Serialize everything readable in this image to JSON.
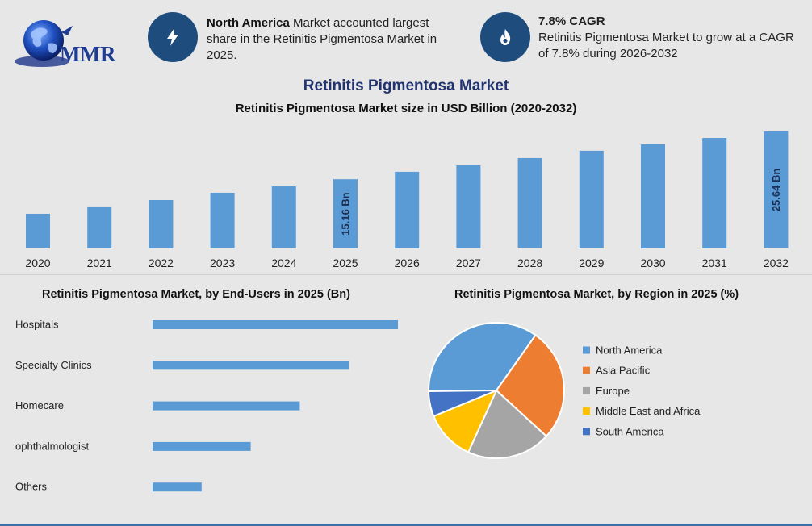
{
  "header": {
    "logo_text": "MMR",
    "info": [
      {
        "icon": "lightning-icon",
        "bold": "North America",
        "text": " Market accounted largest share in the Retinitis Pigmentosa Market in 2025."
      },
      {
        "icon": "flame-icon",
        "bold": "7.8% CAGR",
        "text": "Retinitis Pigmentosa Market to grow at a CAGR of 7.8% during 2026-2032"
      }
    ]
  },
  "colors": {
    "bar": "#5b9bd5",
    "icon_circle": "#1e4c7d",
    "title": "#22346f"
  },
  "chart_data": [
    {
      "type": "bar",
      "title": "Retinitis Pigmentosa Market",
      "subtitle": "Retinitis Pigmentosa Market size in USD Billion (2020-2032)",
      "categories": [
        "2020",
        "2021",
        "2022",
        "2023",
        "2024",
        "2025",
        "2026",
        "2027",
        "2028",
        "2029",
        "2030",
        "2031",
        "2032"
      ],
      "values": [
        7.6,
        9.2,
        10.6,
        12.2,
        13.6,
        15.16,
        16.8,
        18.2,
        19.8,
        21.4,
        22.8,
        24.2,
        25.64
      ],
      "data_labels": [
        {
          "index": 5,
          "text": "15.16 Bn"
        },
        {
          "index": 12,
          "text": "25.64 Bn"
        }
      ],
      "ylim": [
        0,
        26.5
      ]
    },
    {
      "type": "bar",
      "orientation": "horizontal",
      "title": "Retinitis Pigmentosa Market, by End-Users in 2025 (Bn)",
      "categories": [
        "Hospitals",
        "Specialty Clinics",
        "Homecare",
        "ophthalmologist",
        "Others"
      ],
      "values": [
        5.0,
        4.0,
        3.0,
        2.0,
        1.0
      ],
      "xlim": [
        0,
        5.0
      ]
    },
    {
      "type": "pie",
      "title": "Retinitis Pigmentosa Market, by Region in 2025 (%)",
      "legend_position": "right",
      "slices": [
        {
          "name": "North America",
          "value": 35,
          "color": "#5b9bd5"
        },
        {
          "name": "Asia Pacific",
          "value": 27,
          "color": "#ed7d31"
        },
        {
          "name": "Europe",
          "value": 20,
          "color": "#a5a5a5"
        },
        {
          "name": "Middle East and Africa",
          "value": 12,
          "color": "#ffc000"
        },
        {
          "name": "South America",
          "value": 6,
          "color": "#4472c4"
        }
      ]
    }
  ]
}
